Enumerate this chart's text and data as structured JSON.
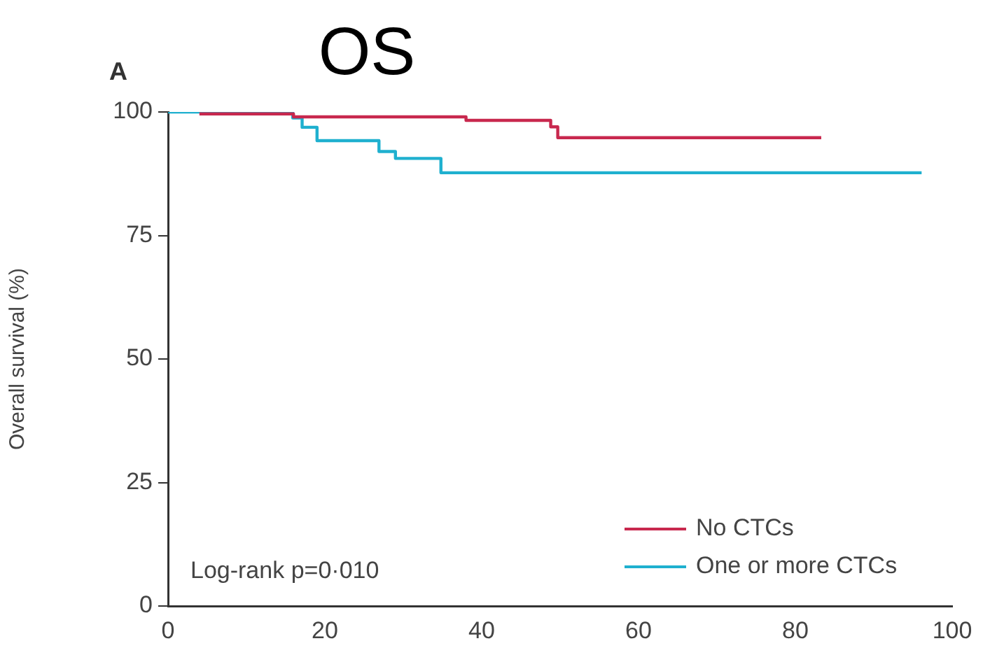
{
  "chart_data": {
    "type": "step",
    "title": "OS",
    "ylabel": "Overall survival (%)",
    "annotations": [
      "A",
      "Log-rank p=0·010"
    ],
    "xlim": [
      0,
      100
    ],
    "xticks": [
      0,
      20,
      40,
      60,
      80,
      100
    ],
    "ylim": [
      0,
      100
    ],
    "yticks": [
      0,
      25,
      50,
      75,
      100
    ],
    "grid": false,
    "legend": "bottom right",
    "marker": "none",
    "series": [
      {
        "name": "No CTCs",
        "color": "#c8284e",
        "x": [
          4,
          16,
          38,
          48.8,
          49.7,
          83.3
        ],
        "values": [
          99.6,
          99,
          98.3,
          97,
          94.8,
          94.8
        ]
      },
      {
        "name": "One or more CTCs",
        "color": "#1fb0cf",
        "x": [
          0,
          15.9,
          17.1,
          19,
          26.9,
          29,
          34.8,
          96.1
        ],
        "values": [
          100,
          98.8,
          96.9,
          94.2,
          92,
          90.6,
          87.7,
          87.7
        ]
      }
    ]
  }
}
